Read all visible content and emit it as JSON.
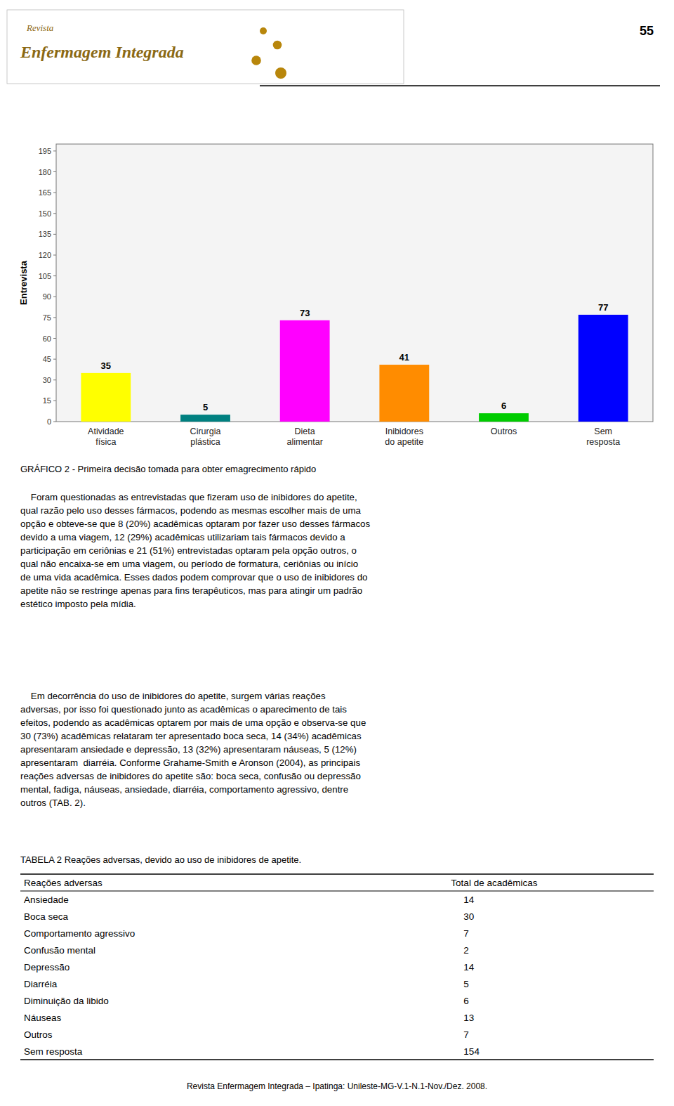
{
  "page_number": "55",
  "header": [
    "Revista",
    "Enfermagem Integrada"
  ],
  "chart_data": {
    "type": "bar",
    "categories": [
      "Atividade\nfísica",
      "Cirurgia\nplástica",
      "Dieta\nalimentar",
      "Inibidores\ndo apetite",
      "Outros",
      "Sem\nresposta"
    ],
    "values": [
      35,
      5,
      73,
      41,
      6,
      77
    ],
    "colors": [
      "#ffff00",
      "#008080",
      "#ff00ff",
      "#ff8c00",
      "#00cc00",
      "#0000ff"
    ],
    "ylabel": "Entrevista",
    "ylim": [
      0,
      200
    ],
    "yticks": [
      0,
      15,
      30,
      45,
      60,
      75,
      90,
      105,
      120,
      135,
      150,
      165,
      180,
      195
    ],
    "grid": false,
    "data_labels": true,
    "caption": "GRÁFICO 2 - Primeira decisão tomada para obter emagrecimento rápido"
  },
  "body": [
    "    Foram questionadas as entrevistadas que fizeram uso de inibidores do apetite,\nqual razão pelo uso desses fármacos, podendo as mesmas escolher mais de uma\nopção e obteve-se que 8 (20%) acadêmicas optaram por fazer uso desses fármacos\ndevido a uma viagem, 12 (29%) acadêmicas utilizariam tais fármacos devido a\nparticipação em ceriônias e 21 (51%) entrevistadas optaram pela opção outros, o\nqual não encaixa-se em uma viagem, ou período de formatura, ceriônias ou início\nde uma vida acadêmica. Esses dados podem comprovar que o uso de inibidores do\napetite não se restringe apenas para fins terapêuticos, mas para atingir um padrão\nestético imposto pela mídia.",
    "    Em decorrência do uso de inibidores do apetite, surgem várias reações\nadversas, por isso foi questionado junto as acadêmicas o aparecimento de tais\nefeitos, podendo as acadêmicas optarem por mais de uma opção e observa-se que\n30 (73%) acadêmicas relataram ter apresentado boca seca, 14 (34%) acadêmicas\napresentaram ansiedade e depressão, 13 (32%) apresentaram náuseas, 5 (12%)\napresentaram  diarréia. Conforme Grahame-Smith e Aronson (2004), as principais\nreações adversas de inibidores do apetite são: boca seca, confusão ou depressão\nmental, fadiga, náuseas, ansiedade, diarréia, comportamento agressivo, dentre\noutros (TAB. 2)."
  ],
  "table": {
    "title": "TABELA 2 Reações adversas, devido ao uso de inibidores de apetite.",
    "columns": [
      "Reações adversas",
      "Total de acadêmicas"
    ],
    "rows": [
      [
        "Ansiedade",
        "14"
      ],
      [
        "Boca seca",
        "30"
      ],
      [
        "Comportamento agressivo",
        "7"
      ],
      [
        "Confusão mental",
        "2"
      ],
      [
        "Depressão",
        "14"
      ],
      [
        "Diarréia",
        "5"
      ],
      [
        "Diminuição da libido",
        "6"
      ],
      [
        "Náuseas",
        "13"
      ],
      [
        "Outros",
        "7"
      ],
      [
        "Sem resposta",
        "154"
      ]
    ]
  },
  "footer": "Revista Enfermagem Integrada – Ipatinga: Unileste-MG-V.1-N.1-Nov./Dez. 2008."
}
